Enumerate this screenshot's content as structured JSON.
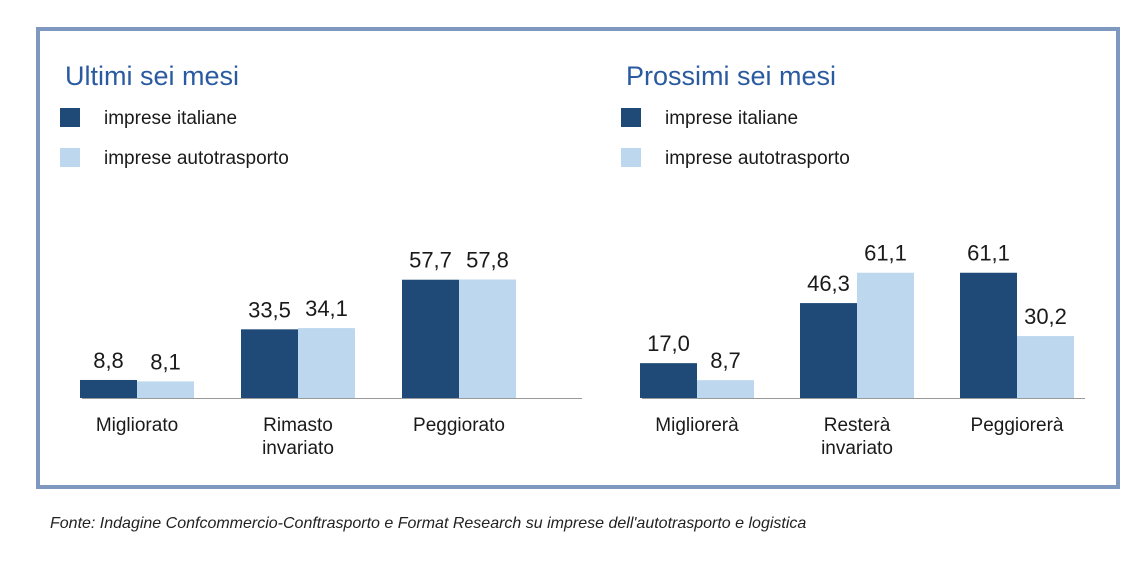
{
  "source_note": "Fonte: Indagine Confcommercio-Conftrasporto e Format Research su imprese dell'autotrasporto e logistica",
  "colors": {
    "frame": "#7f98bf",
    "title": "#2a5aa0",
    "series_dark": "#1f4a78",
    "series_light": "#bdd7ee"
  },
  "chart_data": [
    {
      "type": "bar",
      "title": "Ultimi sei mesi",
      "categories": [
        [
          "Migliorato"
        ],
        [
          "Rimasto",
          "invariato"
        ],
        [
          "Peggiorato"
        ]
      ],
      "series": [
        {
          "name": "imprese italiane",
          "values": [
            8.8,
            33.5,
            57.7
          ],
          "labels": [
            "8,8",
            "33,5",
            "57,7"
          ]
        },
        {
          "name": "imprese autotrasporto",
          "values": [
            8.1,
            34.1,
            57.8
          ],
          "labels": [
            "8,1",
            "34,1",
            "57,8"
          ]
        }
      ],
      "ylim": [
        0,
        70
      ],
      "grid": false,
      "legend": "top-left"
    },
    {
      "type": "bar",
      "title": "Prossimi sei mesi",
      "categories": [
        [
          "Migliorerà"
        ],
        [
          "Resterà",
          "invariato"
        ],
        [
          "Peggiorerà"
        ]
      ],
      "series": [
        {
          "name": "imprese italiane",
          "values": [
            17.0,
            46.3,
            61.1
          ],
          "labels": [
            "17,0",
            "46,3",
            "61,1"
          ]
        },
        {
          "name": "imprese autotrasporto",
          "values": [
            8.7,
            61.1,
            30.2
          ],
          "labels": [
            "8,7",
            "61,1",
            "30,2"
          ]
        }
      ],
      "ylim": [
        0,
        70
      ],
      "grid": false,
      "legend": "top-left"
    }
  ]
}
